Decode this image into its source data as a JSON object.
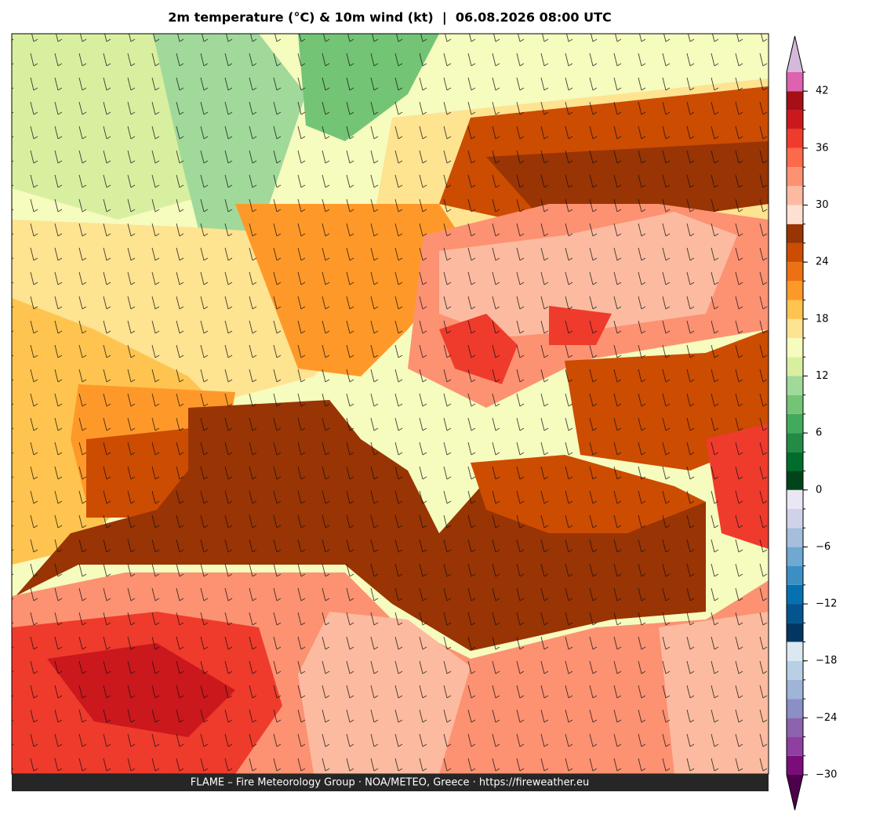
{
  "chart_data": {
    "type": "colorbar-map",
    "title": "2m temperature (°C) & 10m wind (kt)  |  06.08.2026 08:00 UTC",
    "footer": "FLAME – Fire Meteorology Group · NOA/METEO, Greece · https://fireweather.eu",
    "colorbar": {
      "levels": [
        -30,
        -28,
        -26,
        -24,
        -22,
        -20,
        -18,
        -16,
        -14,
        -12,
        -10,
        -8,
        -6,
        -4,
        -2,
        0,
        2,
        4,
        6,
        8,
        10,
        12,
        14,
        16,
        18,
        20,
        22,
        24,
        26,
        28,
        30,
        32,
        34,
        36,
        38,
        40,
        42,
        44
      ],
      "colors": [
        "#7b0d7b",
        "#8e3fa0",
        "#8c63ad",
        "#8c8fc5",
        "#9fb4d6",
        "#b8cfe5",
        "#dbe8f2",
        "#033660",
        "#04558f",
        "#0571b0",
        "#3b8fc4",
        "#6fa8d1",
        "#a4bedb",
        "#cfd2e8",
        "#ebe6f3",
        "#00441b",
        "#006d2c",
        "#238b45",
        "#41ab5d",
        "#74c476",
        "#a1d99b",
        "#d9efa0",
        "#f6fbbe",
        "#fee391",
        "#fec44f",
        "#fe9929",
        "#ec7014",
        "#cc4c02",
        "#993404",
        "#fee0d2",
        "#fcbba1",
        "#fc9272",
        "#fb6a4a",
        "#ef3b2c",
        "#cb181d",
        "#a50f15",
        "#dd62b0"
      ],
      "extend_colors": {
        "under": "#4d004b",
        "over": "#d4b9da"
      },
      "ticks": [
        {
          "value": -30,
          "label": "−30"
        },
        {
          "value": -24,
          "label": "−24"
        },
        {
          "value": -18,
          "label": "−18"
        },
        {
          "value": -12,
          "label": "−12"
        },
        {
          "value": -6,
          "label": "−6"
        },
        0,
        6,
        12,
        18,
        24,
        30,
        36,
        42
      ]
    }
  }
}
